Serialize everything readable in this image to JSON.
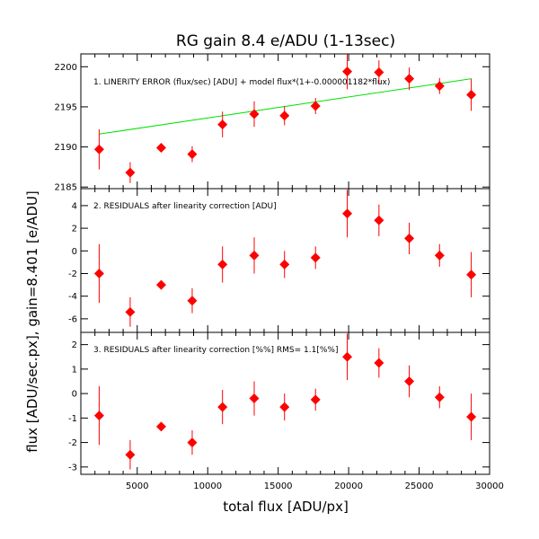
{
  "chart_data": {
    "type": "scatter",
    "title": "RG gain 8.4 e/ADU (1-13sec)",
    "xlabel": "total flux [ADU/px]",
    "ylabel": "flux [ADU/sec.px], gain=8.401 [e/ADU]",
    "xlim": [
      1000,
      30000
    ],
    "x_ticks": [
      5000,
      10000,
      15000,
      20000,
      25000,
      30000
    ],
    "x_tick_labels": [
      "5000",
      "10000",
      "15000",
      "20000",
      "25000",
      "30000"
    ],
    "x": [
      2300,
      4500,
      6700,
      8900,
      11050,
      13300,
      15450,
      17650,
      19900,
      22150,
      24300,
      26450,
      28700
    ],
    "panels": [
      {
        "name": "linearity",
        "annotation": "1. LINERITY ERROR (flux/sec) [ADU] + model flux*(1+-0.000001182*flux)",
        "ylim": [
          2184.8,
          2201.6
        ],
        "y_ticks": [
          2185,
          2190,
          2195,
          2200
        ],
        "y_tick_labels": [
          "2185",
          "2190",
          "2195",
          "2200"
        ],
        "values": [
          2189.7,
          2186.8,
          2189.9,
          2189.1,
          2192.8,
          2194.1,
          2193.9,
          2195.1,
          2199.4,
          2199.3,
          2198.5,
          2197.6,
          2196.5
        ],
        "errors": [
          2.5,
          1.3,
          0.4,
          1.0,
          1.6,
          1.6,
          1.2,
          1.0,
          2.2,
          1.5,
          1.4,
          1.0,
          2.0
        ],
        "model_line": {
          "x": [
            2300,
            28700
          ],
          "y": [
            2191.6,
            2198.5
          ],
          "color": "#00e000"
        }
      },
      {
        "name": "residuals-adu",
        "annotation": "2. RESIDUALS after linearity correction [ADU]",
        "ylim": [
          -7.2,
          5.5
        ],
        "y_ticks": [
          -6,
          -4,
          -2,
          0,
          2,
          4
        ],
        "y_tick_labels": [
          "-6",
          "-4",
          "-2",
          "0",
          "2",
          "4"
        ],
        "values": [
          -2.0,
          -5.4,
          -3.0,
          -4.4,
          -1.2,
          -0.4,
          -1.2,
          -0.6,
          3.3,
          2.7,
          1.1,
          -0.4,
          -2.1
        ],
        "errors": [
          2.6,
          1.3,
          0.4,
          1.1,
          1.6,
          1.6,
          1.2,
          1.0,
          2.1,
          1.4,
          1.4,
          1.0,
          2.0
        ]
      },
      {
        "name": "residuals-percent",
        "annotation": "3. RESIDUALS after linearity correction [%%] RMS=   1.1[%%]",
        "ylim": [
          -3.3,
          2.5
        ],
        "y_ticks": [
          -3,
          -2,
          -1,
          0,
          1,
          2
        ],
        "y_tick_labels": [
          "-3",
          "-2",
          "-1",
          "0",
          "1",
          "2"
        ],
        "values": [
          -0.9,
          -2.5,
          -1.35,
          -2.0,
          -0.55,
          -0.2,
          -0.55,
          -0.25,
          1.5,
          1.25,
          0.5,
          -0.15,
          -0.95
        ],
        "errors": [
          1.2,
          0.6,
          0.15,
          0.5,
          0.7,
          0.7,
          0.55,
          0.45,
          0.95,
          0.6,
          0.65,
          0.45,
          0.95
        ]
      }
    ],
    "marker_color": "#ff0000",
    "grid": false
  }
}
